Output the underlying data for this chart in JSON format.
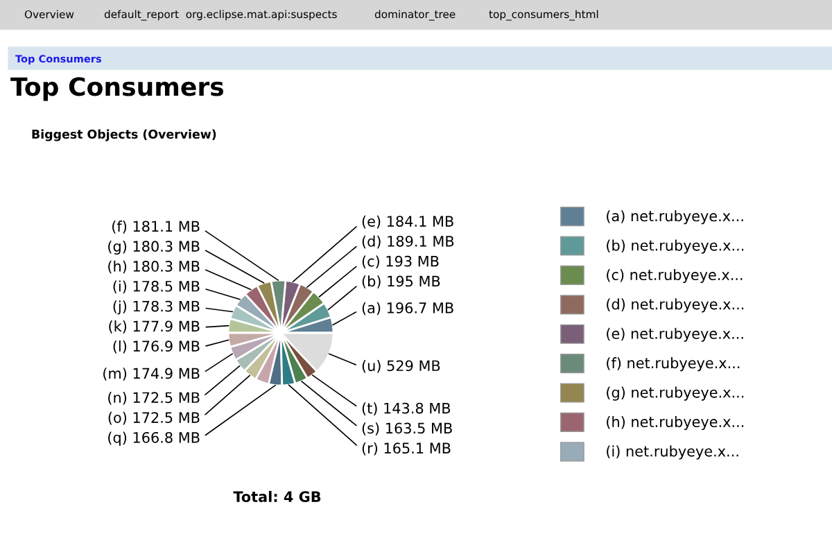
{
  "chart_data": {
    "type": "pie",
    "title": "Top Consumers",
    "subtitle": "Biggest Objects (Overview)",
    "annotations": [
      "Overview",
      "default_report  org.eclipse.mat.api:suspects",
      "dominator_tree",
      "top_consumers_html",
      "Top Consumers",
      "Total: 4 GB"
    ],
    "categories": [
      "(a) net.rubyeye.x...",
      "(b) net.rubyeye.x...",
      "(c) net.rubyeye.x...",
      "(d) net.rubyeye.x...",
      "(e) net.rubyeye.x...",
      "(f) net.rubyeye.x...",
      "(g) net.rubyeye.x...",
      "(h) net.rubyeye.x...",
      "(i) net.rubyeye.x...",
      null,
      null,
      null,
      null,
      null,
      null,
      null,
      null,
      null,
      null,
      null,
      null
    ],
    "values": [
      196.7,
      195,
      193,
      189.1,
      184.1,
      181.1,
      180.3,
      180.3,
      178.5,
      178.3,
      177.9,
      176.9,
      174.9,
      172.5,
      172.5,
      170,
      166.8,
      165.1,
      163.5,
      143.8,
      529
    ],
    "value_labels": [
      "(a) 196.7 MB",
      "(b) 195 MB",
      "(c) 193 MB",
      "(d) 189.1 MB",
      "(e) 184.1 MB",
      "(f) 181.1 MB",
      "(g) 180.3 MB",
      "(h) 180.3 MB",
      "(i) 178.5 MB",
      "(j) 178.3 MB",
      "(k) 177.9 MB",
      "(l) 176.9 MB",
      "(m) 174.9 MB",
      "(n) 172.5 MB",
      "(o) 172.5 MB",
      null,
      "(q) 166.8 MB",
      "(r) 165.1 MB",
      "(s) 163.5 MB",
      "(t) 143.8 MB",
      "(u) 529 MB"
    ],
    "colors": [
      "#5f7f95",
      "#5f9a98",
      "#6a8c4e",
      "#8e6a5e",
      "#7b5f78",
      "#6a8a7a",
      "#948650",
      "#9b6570",
      "#98acb8",
      "#a6c4c0",
      "#b5c59b",
      "#c4aaa6",
      "#b9a6b4",
      "#a9bcb6",
      "#c3bf99",
      "#c8a4ab",
      "#4f6f86",
      "#2e7d85",
      "#4f8050",
      "#7b4f3e",
      "#dcdcdc"
    ],
    "legend": "right"
  }
}
